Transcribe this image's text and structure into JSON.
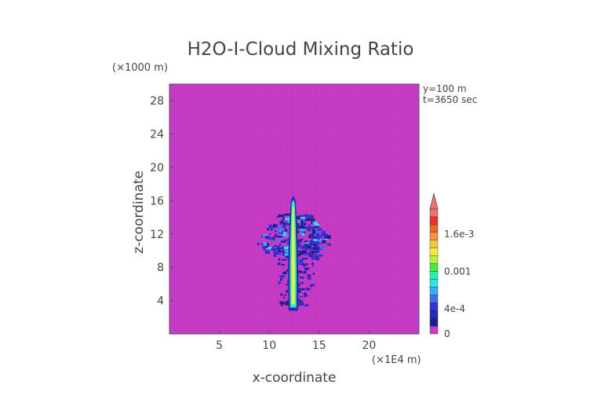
{
  "chart_data": {
    "type": "heatmap",
    "title": "H2O-I-Cloud Mixing Ratio",
    "xlabel": "x-coordinate",
    "ylabel": "z-coordinate",
    "x_unit": "(×1E4 m)",
    "y_unit": "(×1000 m)",
    "xlim": [
      0,
      25
    ],
    "ylim": [
      0,
      30
    ],
    "x_ticks": [
      5,
      10,
      15,
      20
    ],
    "y_ticks": [
      4,
      8,
      12,
      16,
      20,
      24,
      28
    ],
    "annotations": [
      "y=100 m",
      "t=3650 sec"
    ],
    "background_color": "#c83cc8",
    "colorbar": {
      "tick_labels": [
        "0",
        "4e-4",
        "0.001",
        "1.6e-3"
      ],
      "tick_values": [
        0,
        0.0004,
        0.001,
        0.0016
      ],
      "max": 0.002,
      "extend": "max",
      "colors": [
        "#c83cc8",
        "#1e1e8c",
        "#2828b4",
        "#3232dc",
        "#3c6ef0",
        "#3caaf0",
        "#28e6f0",
        "#28f0b4",
        "#3cf03c",
        "#b4f03c",
        "#f0f03c",
        "#f0c83c",
        "#f0963c",
        "#f06428",
        "#e63232",
        "#f07070"
      ]
    },
    "cloud": {
      "x_range": [
        8.5,
        16.5
      ],
      "z_range": [
        2.5,
        17
      ],
      "core_x": 12.4,
      "core_top": 16.6,
      "core_bottom": 2.8,
      "anvil_z": [
        9.5,
        14.5
      ]
    }
  }
}
